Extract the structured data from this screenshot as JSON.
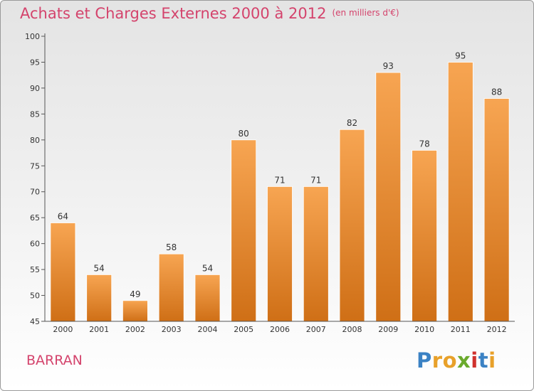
{
  "header": {
    "title": "Achats et Charges Externes 2000 à 2012",
    "subtitle": "(en milliers d'€)"
  },
  "commune": "BARRAN",
  "brand": {
    "letters": [
      "P",
      "r",
      "o",
      "x",
      "i",
      "t",
      "i"
    ],
    "colors": [
      "#3b82c4",
      "#e8a12a",
      "#e8a12a",
      "#6aaa2c",
      "#d0312d",
      "#3b82c4",
      "#e8a12a"
    ]
  },
  "colors": {
    "bar_top": "#f7a552",
    "bar_bottom": "#cf6f16",
    "title": "#d4436c"
  },
  "chart_data": {
    "type": "bar",
    "categories": [
      "2000",
      "2001",
      "2002",
      "2003",
      "2004",
      "2005",
      "2006",
      "2007",
      "2008",
      "2009",
      "2010",
      "2011",
      "2012"
    ],
    "values": [
      64,
      54,
      49,
      58,
      54,
      80,
      71,
      71,
      82,
      93,
      78,
      95,
      88
    ],
    "title": "Achats et Charges Externes 2000 à 2012",
    "subtitle": "(en milliers d'€)",
    "ylim": [
      45,
      100
    ],
    "yticks": [
      45,
      50,
      55,
      60,
      65,
      70,
      75,
      80,
      85,
      90,
      95,
      100
    ],
    "grid": false,
    "data_labels": true
  }
}
